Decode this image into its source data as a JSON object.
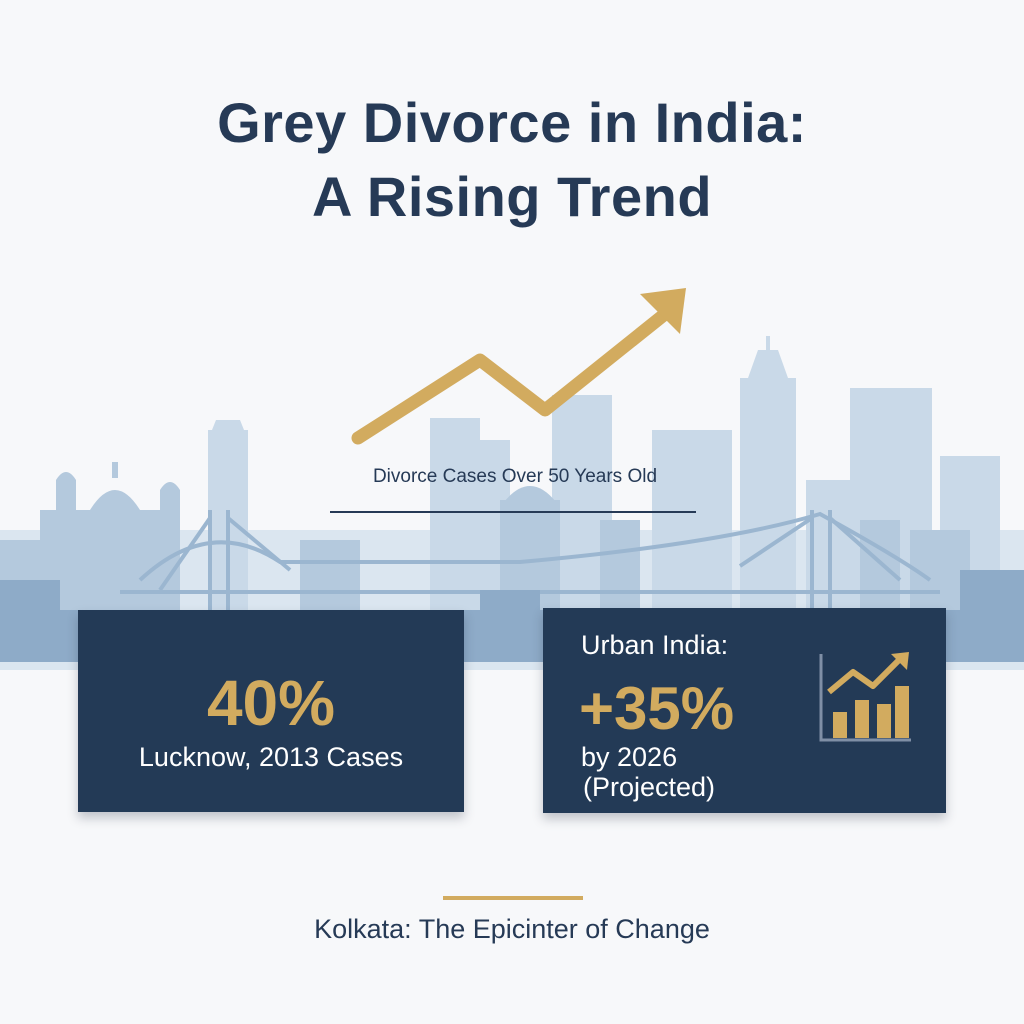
{
  "title": {
    "line1": "Grey Divorce in India:",
    "line2": "A Rising Trend"
  },
  "trend": {
    "caption": "Divorce Cases Over 50 Years Old"
  },
  "cards": {
    "left": {
      "value": "40%",
      "label": "Lucknow, 2013 Cases"
    },
    "right": {
      "heading": "Urban India:",
      "value": "+35%",
      "line1": "by 2026",
      "line2": "(Projected)",
      "icon": "rising-bar-chart-icon"
    }
  },
  "footer": {
    "text": "Kolkata: The Epicinter of Change"
  },
  "colors": {
    "navy": "#233a56",
    "gold": "#d2ab5f",
    "skyline_light": "#c9d9e8",
    "skyline_mid": "#9bb6d0",
    "skyline_dark": "#7f9fbf"
  }
}
